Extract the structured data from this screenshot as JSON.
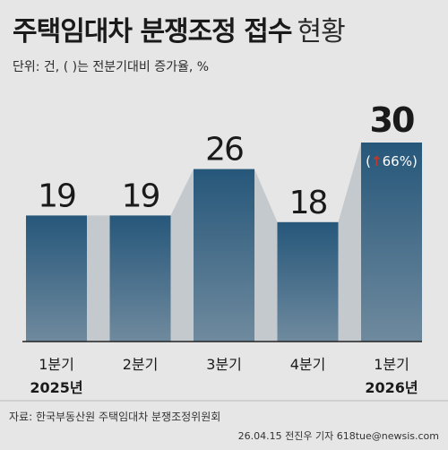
{
  "header": {
    "title": "주택임대차 분쟁조정 접수",
    "title_suffix": "현황",
    "unit_note": "단위: 건, ( )는 전분기대비 증가율, %"
  },
  "chart_data": {
    "type": "bar",
    "title": "주택임대차 분쟁조정 접수 현황",
    "categories": [
      "1분기",
      "2분기",
      "3분기",
      "4분기",
      "1분기"
    ],
    "year_labels": [
      "2025년",
      "",
      "",
      "",
      "2026년"
    ],
    "values": [
      19,
      19,
      26,
      18,
      30
    ],
    "value_labels": [
      "19",
      "19",
      "26",
      "18",
      "30"
    ],
    "annotations": [
      {
        "index": 4,
        "arrow": "up",
        "text": "66%",
        "format": "(↑66%)"
      }
    ],
    "ylim": [
      0,
      30
    ],
    "grid": false,
    "legend": "none",
    "colors": {
      "bar_top": "#26577a",
      "bar_bottom": "#6f8a9e",
      "connector": "#c4c9ce",
      "up_arrow": "#c0392b"
    }
  },
  "footer": {
    "source": "자료: 한국부동산원 주택임대차 분쟁조정위원회",
    "credit": "26.04.15 전진우 기자 618tue@newsis.com"
  }
}
